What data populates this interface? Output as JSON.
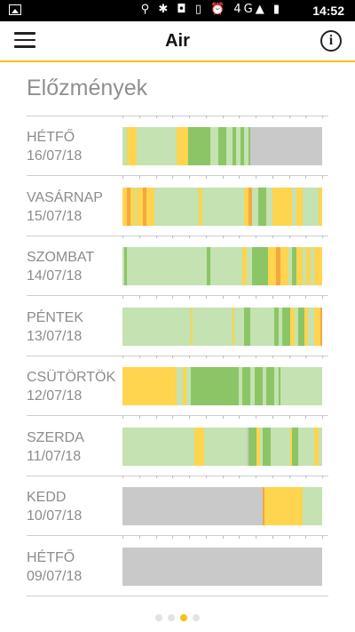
{
  "status_bar": {
    "time": "14:52",
    "icons_text": "⚲ ✱ ◘ ▯ ⏰ 4G▲ ▮"
  },
  "app_bar": {
    "title": "Air"
  },
  "section": {
    "title": "Előzmények"
  },
  "colors": {
    "unknown": "#c9c9c9",
    "light_green": "#c4e2b2",
    "green": "#8cc566",
    "yellow": "#ffd44e",
    "orange": "#f5a742",
    "accent": "#f2c313"
  },
  "history": [
    {
      "day": "HÉTFŐ",
      "date": "16/07/18",
      "segments": [
        {
          "from": 0.0,
          "to": 0.02,
          "color": "light_green"
        },
        {
          "from": 0.02,
          "to": 0.07,
          "color": "yellow"
        },
        {
          "from": 0.07,
          "to": 0.27,
          "color": "light_green"
        },
        {
          "from": 0.27,
          "to": 0.33,
          "color": "yellow"
        },
        {
          "from": 0.33,
          "to": 0.44,
          "color": "green"
        },
        {
          "from": 0.44,
          "to": 0.48,
          "color": "light_green"
        },
        {
          "from": 0.48,
          "to": 0.52,
          "color": "green"
        },
        {
          "from": 0.52,
          "to": 0.55,
          "color": "light_green"
        },
        {
          "from": 0.55,
          "to": 0.57,
          "color": "green"
        },
        {
          "from": 0.57,
          "to": 0.59,
          "color": "light_green"
        },
        {
          "from": 0.59,
          "to": 0.61,
          "color": "green"
        },
        {
          "from": 0.61,
          "to": 0.63,
          "color": "light_green"
        },
        {
          "from": 0.63,
          "to": 0.64,
          "color": "green"
        },
        {
          "from": 0.64,
          "to": 1.0,
          "color": "unknown"
        }
      ]
    },
    {
      "day": "VASÁRNAP",
      "date": "15/07/18",
      "segments": [
        {
          "from": 0.0,
          "to": 0.02,
          "color": "yellow"
        },
        {
          "from": 0.02,
          "to": 0.04,
          "color": "orange"
        },
        {
          "from": 0.04,
          "to": 0.06,
          "color": "yellow"
        },
        {
          "from": 0.06,
          "to": 0.07,
          "color": "light_green"
        },
        {
          "from": 0.07,
          "to": 0.1,
          "color": "yellow"
        },
        {
          "from": 0.1,
          "to": 0.12,
          "color": "orange"
        },
        {
          "from": 0.12,
          "to": 0.16,
          "color": "yellow"
        },
        {
          "from": 0.16,
          "to": 0.38,
          "color": "light_green"
        },
        {
          "from": 0.38,
          "to": 0.4,
          "color": "yellow"
        },
        {
          "from": 0.4,
          "to": 0.61,
          "color": "light_green"
        },
        {
          "from": 0.61,
          "to": 0.63,
          "color": "yellow"
        },
        {
          "from": 0.63,
          "to": 0.65,
          "color": "orange"
        },
        {
          "from": 0.65,
          "to": 0.68,
          "color": "light_green"
        },
        {
          "from": 0.68,
          "to": 0.72,
          "color": "green"
        },
        {
          "from": 0.72,
          "to": 0.75,
          "color": "light_green"
        },
        {
          "from": 0.75,
          "to": 0.85,
          "color": "yellow"
        },
        {
          "from": 0.85,
          "to": 0.87,
          "color": "light_green"
        },
        {
          "from": 0.87,
          "to": 0.9,
          "color": "yellow"
        },
        {
          "from": 0.9,
          "to": 0.98,
          "color": "light_green"
        },
        {
          "from": 0.98,
          "to": 1.0,
          "color": "yellow"
        }
      ]
    },
    {
      "day": "SZOMBAT",
      "date": "14/07/18",
      "segments": [
        {
          "from": 0.0,
          "to": 0.01,
          "color": "light_green"
        },
        {
          "from": 0.01,
          "to": 0.02,
          "color": "green"
        },
        {
          "from": 0.02,
          "to": 0.42,
          "color": "light_green"
        },
        {
          "from": 0.42,
          "to": 0.44,
          "color": "green"
        },
        {
          "from": 0.44,
          "to": 0.6,
          "color": "light_green"
        },
        {
          "from": 0.6,
          "to": 0.62,
          "color": "yellow"
        },
        {
          "from": 0.62,
          "to": 0.65,
          "color": "light_green"
        },
        {
          "from": 0.65,
          "to": 0.73,
          "color": "green"
        },
        {
          "from": 0.73,
          "to": 0.77,
          "color": "yellow"
        },
        {
          "from": 0.77,
          "to": 0.79,
          "color": "orange"
        },
        {
          "from": 0.79,
          "to": 0.83,
          "color": "yellow"
        },
        {
          "from": 0.83,
          "to": 0.85,
          "color": "light_green"
        },
        {
          "from": 0.85,
          "to": 0.87,
          "color": "green"
        },
        {
          "from": 0.87,
          "to": 0.9,
          "color": "yellow"
        },
        {
          "from": 0.9,
          "to": 0.92,
          "color": "light_green"
        },
        {
          "from": 0.92,
          "to": 0.94,
          "color": "yellow"
        },
        {
          "from": 0.94,
          "to": 0.96,
          "color": "light_green"
        },
        {
          "from": 0.96,
          "to": 1.0,
          "color": "yellow"
        }
      ]
    },
    {
      "day": "PÉNTEK",
      "date": "13/07/18",
      "segments": [
        {
          "from": 0.0,
          "to": 0.34,
          "color": "light_green"
        },
        {
          "from": 0.34,
          "to": 0.35,
          "color": "yellow"
        },
        {
          "from": 0.35,
          "to": 0.55,
          "color": "light_green"
        },
        {
          "from": 0.55,
          "to": 0.56,
          "color": "yellow"
        },
        {
          "from": 0.56,
          "to": 0.61,
          "color": "light_green"
        },
        {
          "from": 0.61,
          "to": 0.64,
          "color": "green"
        },
        {
          "from": 0.64,
          "to": 0.76,
          "color": "light_green"
        },
        {
          "from": 0.76,
          "to": 0.78,
          "color": "green"
        },
        {
          "from": 0.78,
          "to": 0.8,
          "color": "light_green"
        },
        {
          "from": 0.8,
          "to": 0.84,
          "color": "green"
        },
        {
          "from": 0.84,
          "to": 0.86,
          "color": "yellow"
        },
        {
          "from": 0.86,
          "to": 0.88,
          "color": "light_green"
        },
        {
          "from": 0.88,
          "to": 0.91,
          "color": "green"
        },
        {
          "from": 0.91,
          "to": 0.93,
          "color": "yellow"
        },
        {
          "from": 0.93,
          "to": 0.96,
          "color": "light_green"
        },
        {
          "from": 0.96,
          "to": 0.99,
          "color": "yellow"
        },
        {
          "from": 0.99,
          "to": 1.0,
          "color": "orange"
        }
      ]
    },
    {
      "day": "CSÜTÖRTÖK",
      "date": "12/07/18",
      "segments": [
        {
          "from": 0.0,
          "to": 0.27,
          "color": "yellow"
        },
        {
          "from": 0.27,
          "to": 0.3,
          "color": "light_green"
        },
        {
          "from": 0.3,
          "to": 0.32,
          "color": "yellow"
        },
        {
          "from": 0.32,
          "to": 0.34,
          "color": "light_green"
        },
        {
          "from": 0.34,
          "to": 0.58,
          "color": "green"
        },
        {
          "from": 0.58,
          "to": 0.6,
          "color": "light_green"
        },
        {
          "from": 0.6,
          "to": 0.64,
          "color": "green"
        },
        {
          "from": 0.64,
          "to": 0.66,
          "color": "light_green"
        },
        {
          "from": 0.66,
          "to": 0.7,
          "color": "green"
        },
        {
          "from": 0.7,
          "to": 0.72,
          "color": "light_green"
        },
        {
          "from": 0.72,
          "to": 0.76,
          "color": "green"
        },
        {
          "from": 0.76,
          "to": 0.78,
          "color": "light_green"
        },
        {
          "from": 0.78,
          "to": 0.79,
          "color": "green"
        },
        {
          "from": 0.79,
          "to": 1.0,
          "color": "light_green"
        }
      ]
    },
    {
      "day": "SZERDA",
      "date": "11/07/18",
      "segments": [
        {
          "from": 0.0,
          "to": 0.36,
          "color": "light_green"
        },
        {
          "from": 0.36,
          "to": 0.41,
          "color": "yellow"
        },
        {
          "from": 0.41,
          "to": 0.62,
          "color": "light_green"
        },
        {
          "from": 0.62,
          "to": 0.63,
          "color": "unknown"
        },
        {
          "from": 0.63,
          "to": 0.67,
          "color": "green"
        },
        {
          "from": 0.67,
          "to": 0.69,
          "color": "yellow"
        },
        {
          "from": 0.69,
          "to": 0.7,
          "color": "light_green"
        },
        {
          "from": 0.7,
          "to": 0.74,
          "color": "green"
        },
        {
          "from": 0.74,
          "to": 0.84,
          "color": "light_green"
        },
        {
          "from": 0.84,
          "to": 0.85,
          "color": "yellow"
        },
        {
          "from": 0.85,
          "to": 0.88,
          "color": "green"
        },
        {
          "from": 0.88,
          "to": 0.96,
          "color": "light_green"
        },
        {
          "from": 0.96,
          "to": 0.98,
          "color": "yellow"
        },
        {
          "from": 0.98,
          "to": 1.0,
          "color": "light_green"
        }
      ]
    },
    {
      "day": "KEDD",
      "date": "10/07/18",
      "segments": [
        {
          "from": 0.0,
          "to": 0.7,
          "color": "unknown"
        },
        {
          "from": 0.7,
          "to": 0.71,
          "color": "orange"
        },
        {
          "from": 0.71,
          "to": 0.9,
          "color": "yellow"
        },
        {
          "from": 0.9,
          "to": 1.0,
          "color": "light_green"
        }
      ]
    },
    {
      "day": "HÉTFŐ",
      "date": "09/07/18",
      "segments": [
        {
          "from": 0.0,
          "to": 1.0,
          "color": "unknown"
        }
      ]
    }
  ],
  "pager": {
    "count": 4,
    "active_index": 2
  }
}
